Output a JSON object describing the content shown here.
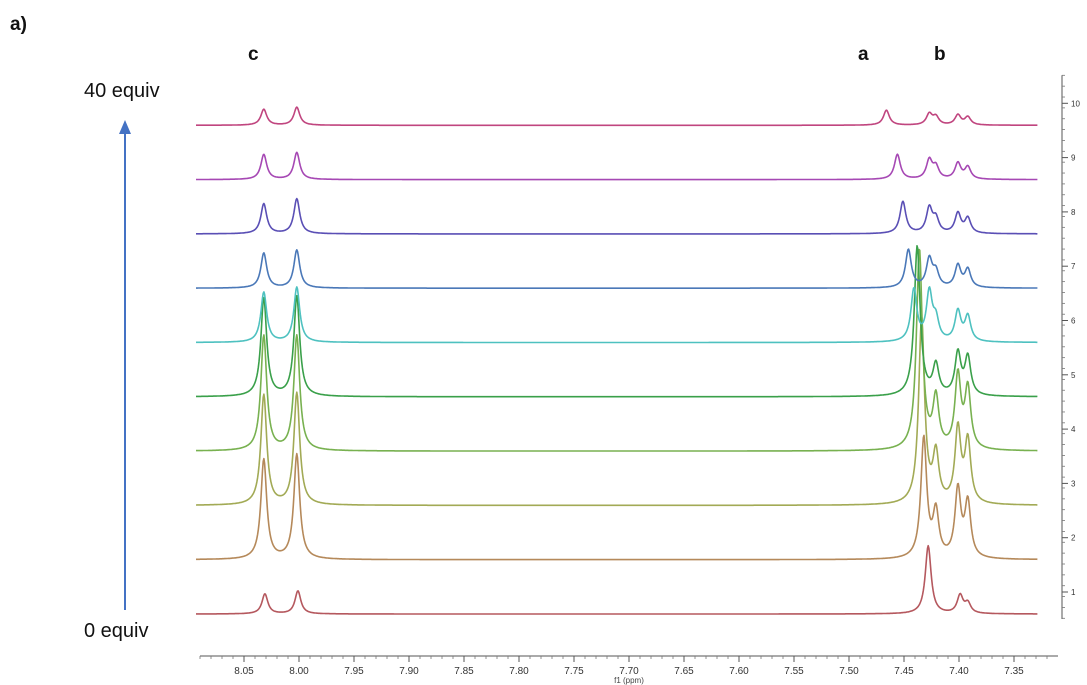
{
  "panel_label": "a)",
  "titration": {
    "top_label": "40 equiv",
    "bottom_label": "0 equiv",
    "arrow_color": "#4472c4"
  },
  "peak_labels": [
    {
      "id": "c",
      "text": "c",
      "ppm": 8.03
    },
    {
      "id": "a",
      "text": "a",
      "ppm": 7.47
    },
    {
      "id": "b",
      "text": "b",
      "ppm": 7.41
    }
  ],
  "chart_data": {
    "type": "line",
    "title": "",
    "xlabel": "f1 (ppm)",
    "ylabel": "",
    "xlim": [
      8.09,
      7.31
    ],
    "x_reversed": true,
    "x_ticks": [
      8.05,
      8.0,
      7.95,
      7.9,
      7.85,
      7.8,
      7.75,
      7.7,
      7.65,
      7.6,
      7.55,
      7.5,
      7.45,
      7.4,
      7.35
    ],
    "x_tick_labels": [
      "8.05",
      "8.00",
      "7.95",
      "7.90",
      "7.85",
      "7.80",
      "7.75",
      "7.70",
      "7.65",
      "7.60",
      "7.55",
      "7.50",
      "7.45",
      "7.40",
      "7.35"
    ],
    "trace_axis_labels": [
      "1",
      "2",
      "3",
      "4",
      "5",
      "6",
      "7",
      "8",
      "9",
      "10"
    ],
    "series": [
      {
        "trace": 1,
        "color": "#b5585e",
        "peaks": [
          {
            "ppm": 8.031,
            "height": 20
          },
          {
            "ppm": 8.001,
            "height": 23
          },
          {
            "ppm": 7.428,
            "height": 68
          },
          {
            "ppm": 7.399,
            "height": 18
          },
          {
            "ppm": 7.392,
            "height": 10
          }
        ]
      },
      {
        "trace": 2,
        "color": "#b5895a",
        "peaks": [
          {
            "ppm": 8.032,
            "height": 100
          },
          {
            "ppm": 8.002,
            "height": 105
          },
          {
            "ppm": 7.432,
            "height": 120
          },
          {
            "ppm": 7.421,
            "height": 45
          },
          {
            "ppm": 7.401,
            "height": 68
          },
          {
            "ppm": 7.392,
            "height": 55
          }
        ]
      },
      {
        "trace": 3,
        "color": "#a2aa55",
        "peaks": [
          {
            "ppm": 8.032,
            "height": 110
          },
          {
            "ppm": 8.002,
            "height": 112
          },
          {
            "ppm": 7.434,
            "height": 185
          },
          {
            "ppm": 7.421,
            "height": 48
          },
          {
            "ppm": 7.401,
            "height": 74
          },
          {
            "ppm": 7.392,
            "height": 62
          }
        ]
      },
      {
        "trace": 4,
        "color": "#78b150",
        "peaks": [
          {
            "ppm": 8.032,
            "height": 115
          },
          {
            "ppm": 8.002,
            "height": 115
          },
          {
            "ppm": 7.436,
            "height": 200
          },
          {
            "ppm": 7.421,
            "height": 50
          },
          {
            "ppm": 7.401,
            "height": 73
          },
          {
            "ppm": 7.392,
            "height": 60
          }
        ]
      },
      {
        "trace": 5,
        "color": "#3aa04a",
        "peaks": [
          {
            "ppm": 8.032,
            "height": 98
          },
          {
            "ppm": 8.002,
            "height": 100
          },
          {
            "ppm": 7.438,
            "height": 150
          },
          {
            "ppm": 7.421,
            "height": 30
          },
          {
            "ppm": 7.401,
            "height": 42
          },
          {
            "ppm": 7.392,
            "height": 38
          }
        ]
      },
      {
        "trace": 6,
        "color": "#4ec1c0",
        "peaks": [
          {
            "ppm": 8.032,
            "height": 50
          },
          {
            "ppm": 8.002,
            "height": 55
          },
          {
            "ppm": 7.441,
            "height": 52
          },
          {
            "ppm": 7.427,
            "height": 48
          },
          {
            "ppm": 7.421,
            "height": 20
          },
          {
            "ppm": 7.401,
            "height": 30
          },
          {
            "ppm": 7.392,
            "height": 25
          }
        ]
      },
      {
        "trace": 7,
        "color": "#4a78b8",
        "peaks": [
          {
            "ppm": 8.032,
            "height": 35
          },
          {
            "ppm": 8.002,
            "height": 38
          },
          {
            "ppm": 7.446,
            "height": 38
          },
          {
            "ppm": 7.427,
            "height": 28
          },
          {
            "ppm": 7.421,
            "height": 15
          },
          {
            "ppm": 7.401,
            "height": 22
          },
          {
            "ppm": 7.392,
            "height": 18
          }
        ]
      },
      {
        "trace": 8,
        "color": "#5a4fb5",
        "peaks": [
          {
            "ppm": 8.032,
            "height": 30
          },
          {
            "ppm": 8.002,
            "height": 35
          },
          {
            "ppm": 7.451,
            "height": 32
          },
          {
            "ppm": 7.427,
            "height": 25
          },
          {
            "ppm": 7.421,
            "height": 14
          },
          {
            "ppm": 7.401,
            "height": 20
          },
          {
            "ppm": 7.392,
            "height": 15
          }
        ]
      },
      {
        "trace": 9,
        "color": "#a648b4",
        "peaks": [
          {
            "ppm": 8.032,
            "height": 25
          },
          {
            "ppm": 8.002,
            "height": 27
          },
          {
            "ppm": 7.456,
            "height": 25
          },
          {
            "ppm": 7.427,
            "height": 19
          },
          {
            "ppm": 7.421,
            "height": 12
          },
          {
            "ppm": 7.401,
            "height": 16
          },
          {
            "ppm": 7.392,
            "height": 12
          }
        ]
      },
      {
        "trace": 10,
        "color": "#c0457f",
        "peaks": [
          {
            "ppm": 8.032,
            "height": 16
          },
          {
            "ppm": 8.002,
            "height": 18
          },
          {
            "ppm": 7.466,
            "height": 15
          },
          {
            "ppm": 7.427,
            "height": 11
          },
          {
            "ppm": 7.421,
            "height": 8
          },
          {
            "ppm": 7.401,
            "height": 10
          },
          {
            "ppm": 7.392,
            "height": 8
          }
        ]
      }
    ]
  }
}
